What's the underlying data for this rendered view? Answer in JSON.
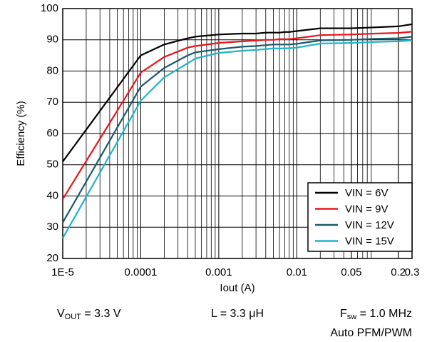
{
  "chart_data": {
    "type": "line",
    "xlabel": "Iout (A)",
    "ylabel": "Efficiency (%)",
    "x": [
      1e-05,
      0.0001,
      0.0002,
      0.0004,
      0.0005,
      0.001,
      0.002,
      0.003,
      0.004,
      0.005,
      0.006,
      0.007,
      0.008,
      0.01,
      0.02,
      0.05,
      0.1,
      0.2,
      0.3
    ],
    "series": [
      {
        "name": "VIN = 6V",
        "color": "#000000",
        "values": [
          51,
          85,
          88.5,
          90.5,
          91,
          91.7,
          92,
          92,
          92.3,
          92.3,
          92.3,
          92.5,
          92.5,
          92.8,
          93.7,
          93.7,
          94,
          94.3,
          95
        ]
      },
      {
        "name": "VIN = 9V",
        "color": "#e8141c",
        "values": [
          39,
          79.5,
          84.5,
          87.5,
          88,
          89,
          89.5,
          89.8,
          90,
          90,
          90.2,
          90.2,
          90.2,
          90.5,
          91.5,
          91.7,
          92,
          92.2,
          92.6
        ]
      },
      {
        "name": "VIN = 12V",
        "color": "#1b5a6c",
        "values": [
          31.5,
          75,
          81,
          85,
          86,
          87,
          87.8,
          88,
          88.3,
          88.5,
          88.5,
          88.5,
          88.5,
          88.7,
          89.8,
          90,
          90.3,
          90.5,
          91
        ]
      },
      {
        "name": "VIN = 15V",
        "color": "#1fb4c9",
        "values": [
          26.5,
          70.5,
          78,
          82.5,
          84,
          85.8,
          86.5,
          86.8,
          87,
          87.3,
          87.2,
          87.3,
          87.3,
          87.5,
          88.8,
          89,
          89.3,
          89.5,
          89.8
        ]
      }
    ],
    "xlog": true,
    "xlim": [
      1e-05,
      0.3
    ],
    "xticks": [
      {
        "value": 1e-05,
        "label": "1E-5"
      },
      0.0001,
      0.001,
      0.01,
      0.05,
      0.2,
      0.3
    ],
    "ylim": [
      20,
      100
    ],
    "yticks": [
      20,
      30,
      40,
      50,
      60,
      70,
      80,
      90,
      100
    ],
    "grid": true,
    "minor_grid": true,
    "legend": "lower right",
    "annotations": [
      {
        "base": "V",
        "sub": "OUT",
        "rest": " = 3.3 V"
      },
      {
        "base": "L = 3.3 μH"
      },
      {
        "base": "F",
        "sub": "sw",
        "rest": " = 1.0 MHz"
      },
      {
        "base": "Auto PFM/PWM"
      }
    ]
  }
}
